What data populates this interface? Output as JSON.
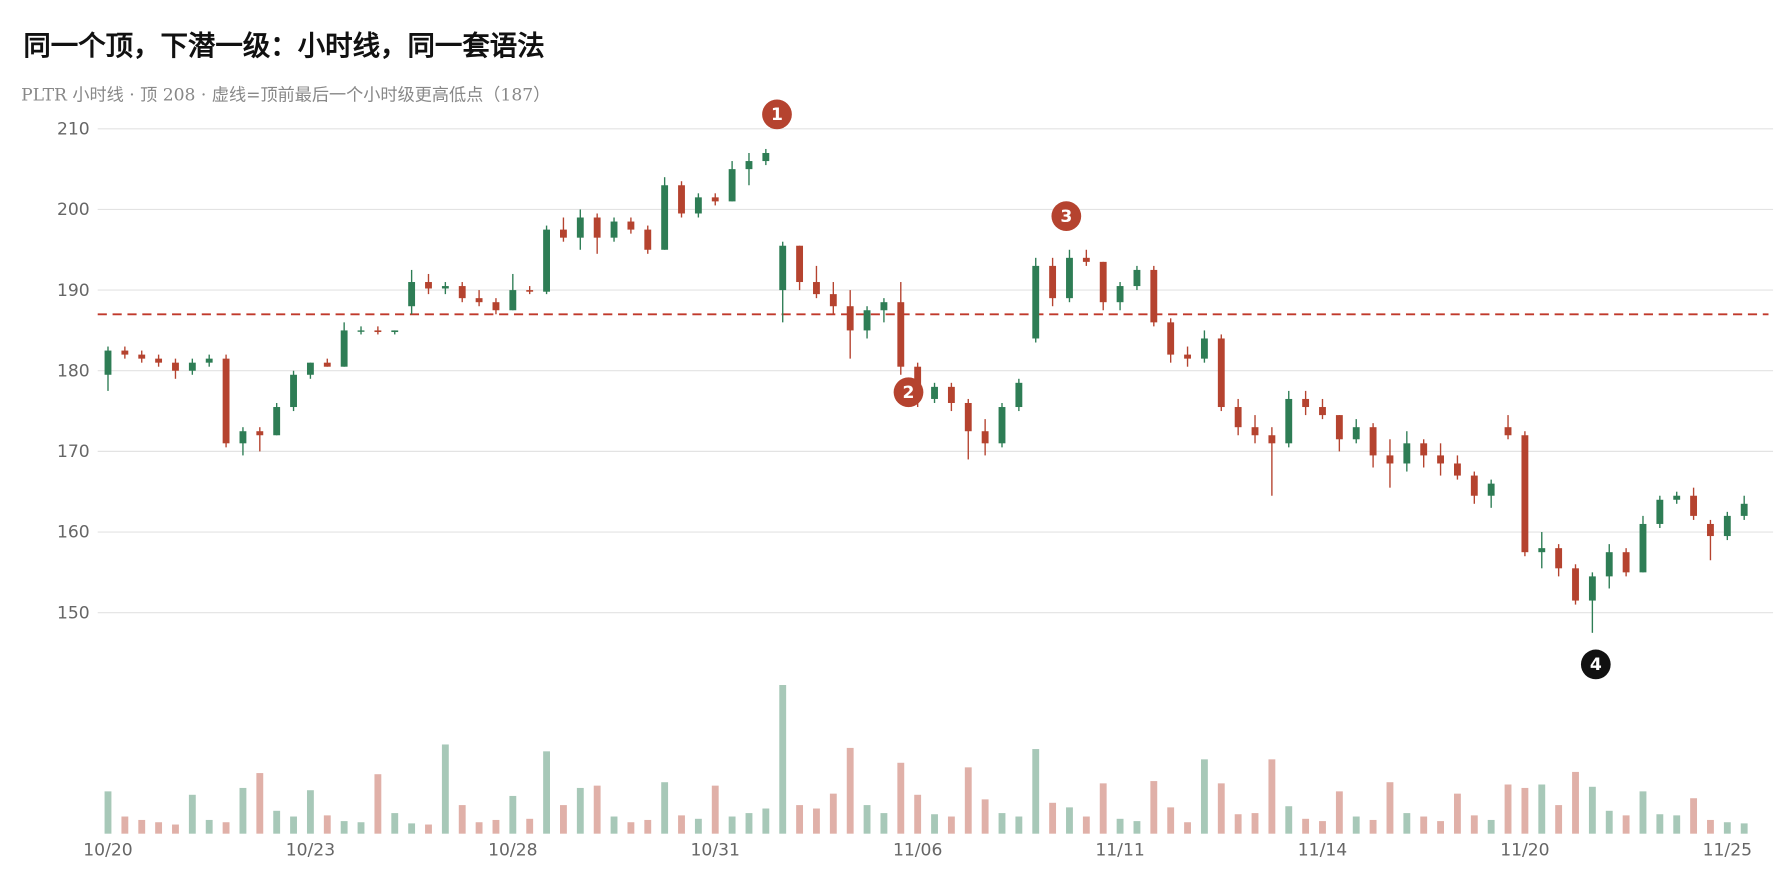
{
  "chart_data": {
    "type": "candlestick",
    "title": "同一个顶，下潜一级：小时线，同一套语法",
    "subtitle": "PLTR 小时线 · 顶 208 · 虚线=顶前最后一个小时级更高低点（187）",
    "categories": [
      "10/20",
      null,
      null,
      null,
      null,
      null,
      null,
      null,
      null,
      null,
      null,
      null,
      "10/23",
      null,
      null,
      null,
      null,
      null,
      null,
      null,
      null,
      null,
      null,
      null,
      "10/28",
      null,
      null,
      null,
      null,
      null,
      null,
      null,
      null,
      null,
      null,
      null,
      "10/31",
      null,
      null,
      null,
      null,
      null,
      null,
      null,
      null,
      null,
      null,
      null,
      "11/06",
      null,
      null,
      null,
      null,
      null,
      null,
      null,
      null,
      null,
      null,
      null,
      "11/11",
      null,
      null,
      null,
      null,
      null,
      null,
      null,
      null,
      null,
      null,
      null,
      "11/14",
      null,
      null,
      null,
      null,
      null,
      null,
      null,
      null,
      null,
      null,
      null,
      "11/20",
      null,
      null,
      null,
      null,
      null,
      null,
      null,
      null,
      null,
      null,
      null,
      "11/25",
      null
    ],
    "ohlc": [
      [
        179.5,
        183,
        177.5,
        182.5
      ],
      [
        182.5,
        183,
        181.5,
        182
      ],
      [
        182,
        182.5,
        181,
        181.5
      ],
      [
        181.5,
        182,
        180.5,
        181
      ],
      [
        181,
        181.5,
        179,
        180
      ],
      [
        180,
        181.5,
        179.5,
        181
      ],
      [
        181,
        182,
        180.5,
        181.5
      ],
      [
        181.5,
        182,
        170.5,
        171
      ],
      [
        171,
        173,
        169.5,
        172.5
      ],
      [
        172.5,
        173,
        170,
        172
      ],
      [
        172,
        176,
        172,
        175.5
      ],
      [
        175.5,
        180,
        175,
        179.5
      ],
      [
        179.5,
        181,
        179,
        181
      ],
      [
        181,
        181.5,
        180.5,
        180.5
      ],
      [
        180.5,
        186,
        180.5,
        185
      ],
      [
        185,
        185.5,
        184.5,
        185
      ],
      [
        185,
        185.5,
        184.5,
        184.8
      ],
      [
        184.8,
        185,
        184.5,
        185
      ],
      [
        188,
        192.5,
        187,
        191
      ],
      [
        191,
        192,
        189.5,
        190.2
      ],
      [
        190.2,
        191,
        189.5,
        190.5
      ],
      [
        190.5,
        191,
        188.5,
        189
      ],
      [
        189,
        190,
        188,
        188.5
      ],
      [
        188.5,
        189,
        187,
        187.5
      ],
      [
        187.5,
        192,
        187.5,
        190
      ],
      [
        190,
        190.5,
        189.5,
        189.8
      ],
      [
        189.8,
        198,
        189.5,
        197.5
      ],
      [
        197.5,
        199,
        196,
        196.5
      ],
      [
        196.5,
        200,
        195,
        199
      ],
      [
        199,
        199.5,
        194.5,
        196.5
      ],
      [
        196.5,
        199,
        196,
        198.5
      ],
      [
        198.5,
        199,
        197,
        197.5
      ],
      [
        197.5,
        198,
        194.5,
        195
      ],
      [
        195,
        204,
        195,
        203
      ],
      [
        203,
        203.5,
        199,
        199.5
      ],
      [
        199.5,
        202,
        199,
        201.5
      ],
      [
        201.5,
        202,
        200.5,
        201
      ],
      [
        201,
        206,
        201,
        205
      ],
      [
        205,
        207,
        203,
        206
      ],
      [
        206,
        207.5,
        205.5,
        207
      ],
      [
        190,
        196,
        186,
        195.5
      ],
      [
        195.5,
        195.5,
        190,
        191
      ],
      [
        191,
        193,
        189,
        189.5
      ],
      [
        189.5,
        191,
        187,
        188
      ],
      [
        188,
        190,
        181.5,
        185
      ],
      [
        185,
        188,
        184,
        187.5
      ],
      [
        187.5,
        189,
        186,
        188.5
      ],
      [
        188.5,
        191,
        179.5,
        180.5
      ],
      [
        180.5,
        181,
        175.5,
        176.5
      ],
      [
        176.5,
        178.5,
        176,
        178
      ],
      [
        178,
        178.5,
        175,
        176
      ],
      [
        176,
        176.5,
        169,
        172.5
      ],
      [
        172.5,
        174,
        169.5,
        171
      ],
      [
        171,
        176,
        170.5,
        175.5
      ],
      [
        175.5,
        179,
        175,
        178.5
      ],
      [
        184,
        194,
        183.5,
        193
      ],
      [
        193,
        194,
        188,
        189
      ],
      [
        189,
        195,
        188.5,
        194
      ],
      [
        194,
        195,
        193,
        193.5
      ],
      [
        193.5,
        193.5,
        187.5,
        188.5
      ],
      [
        188.5,
        191,
        187.5,
        190.5
      ],
      [
        190.5,
        193,
        190,
        192.5
      ],
      [
        192.5,
        193,
        185.5,
        186
      ],
      [
        186,
        186.5,
        181,
        182
      ],
      [
        182,
        183,
        180.5,
        181.5
      ],
      [
        181.5,
        185,
        181,
        184
      ],
      [
        184,
        184.5,
        175,
        175.5
      ],
      [
        175.5,
        176.5,
        172,
        173
      ],
      [
        173,
        174.5,
        171,
        172
      ],
      [
        172,
        173,
        164.5,
        171
      ],
      [
        171,
        177.5,
        170.5,
        176.5
      ],
      [
        176.5,
        177.5,
        174.5,
        175.5
      ],
      [
        175.5,
        176.5,
        174,
        174.5
      ],
      [
        174.5,
        174.5,
        170,
        171.5
      ],
      [
        171.5,
        174,
        171,
        173
      ],
      [
        173,
        173.5,
        168,
        169.5
      ],
      [
        169.5,
        171.5,
        165.5,
        168.5
      ],
      [
        168.5,
        172.5,
        167.5,
        171
      ],
      [
        171,
        171.5,
        168,
        169.5
      ],
      [
        169.5,
        171,
        167,
        168.5
      ],
      [
        168.5,
        169.5,
        166.5,
        167
      ],
      [
        167,
        167.5,
        163.5,
        164.5
      ],
      [
        164.5,
        166.5,
        163,
        166
      ],
      [
        173,
        174.5,
        171.5,
        172
      ],
      [
        172,
        172.5,
        157,
        157.5
      ],
      [
        157.5,
        160,
        155.5,
        158
      ],
      [
        158,
        158.5,
        154.5,
        155.5
      ],
      [
        155.5,
        156,
        151,
        151.5
      ],
      [
        151.5,
        155,
        147.5,
        154.5
      ],
      [
        154.5,
        158.5,
        153,
        157.5
      ],
      [
        157.5,
        158,
        154.5,
        155
      ],
      [
        155,
        162,
        155,
        161
      ],
      [
        161,
        164.5,
        160.5,
        164
      ],
      [
        164,
        165,
        163.5,
        164.5
      ],
      [
        164.5,
        165.5,
        161.5,
        162
      ],
      [
        161,
        161.5,
        156.5,
        159.5
      ],
      [
        159.5,
        162.5,
        159,
        162
      ],
      [
        162,
        164.5,
        161.5,
        163.5
      ]
    ],
    "volume": [
      3.7,
      1.5,
      1.2,
      1.0,
      0.8,
      3.4,
      1.2,
      1.0,
      4.0,
      5.3,
      2.0,
      1.5,
      3.8,
      1.6,
      1.1,
      1.0,
      5.2,
      1.8,
      0.9,
      0.8,
      7.8,
      2.5,
      1.0,
      1.2,
      3.3,
      1.3,
      7.2,
      2.5,
      4.0,
      4.2,
      1.5,
      1.0,
      1.2,
      4.5,
      1.6,
      1.3,
      4.2,
      1.5,
      1.8,
      2.2,
      13.0,
      2.5,
      2.2,
      3.5,
      7.5,
      2.5,
      1.8,
      6.2,
      3.4,
      1.7,
      1.5,
      5.8,
      3.0,
      1.8,
      1.5,
      7.4,
      2.7,
      2.3,
      1.5,
      4.4,
      1.3,
      1.1,
      4.6,
      2.3,
      1.0,
      6.5,
      4.4,
      1.7,
      1.8,
      6.5,
      2.4,
      1.3,
      1.1,
      3.7,
      1.5,
      1.2,
      4.5,
      1.8,
      1.5,
      1.1,
      3.5,
      1.6,
      1.2,
      4.3,
      4.0,
      4.3,
      2.5,
      5.4,
      4.1,
      2.0,
      1.6,
      3.7,
      1.7,
      1.6,
      3.1,
      1.2,
      1.0,
      0.9
    ],
    "up_color": "#2e7d55",
    "down_color": "#b5432f",
    "ylim": [
      145,
      212.5
    ],
    "yticks": [
      150,
      160,
      170,
      180,
      190,
      200,
      210
    ],
    "grid": true,
    "y2lim": [
      0,
      14
    ],
    "hline": {
      "value": 187,
      "color": "#c0392b"
    },
    "annotations": [
      {
        "label": "1",
        "color": "#b5432f"
      },
      {
        "label": "2",
        "color": "#b5432f"
      },
      {
        "label": "3",
        "color": "#b5432f"
      },
      {
        "label": "4",
        "color": "#111111"
      }
    ]
  }
}
